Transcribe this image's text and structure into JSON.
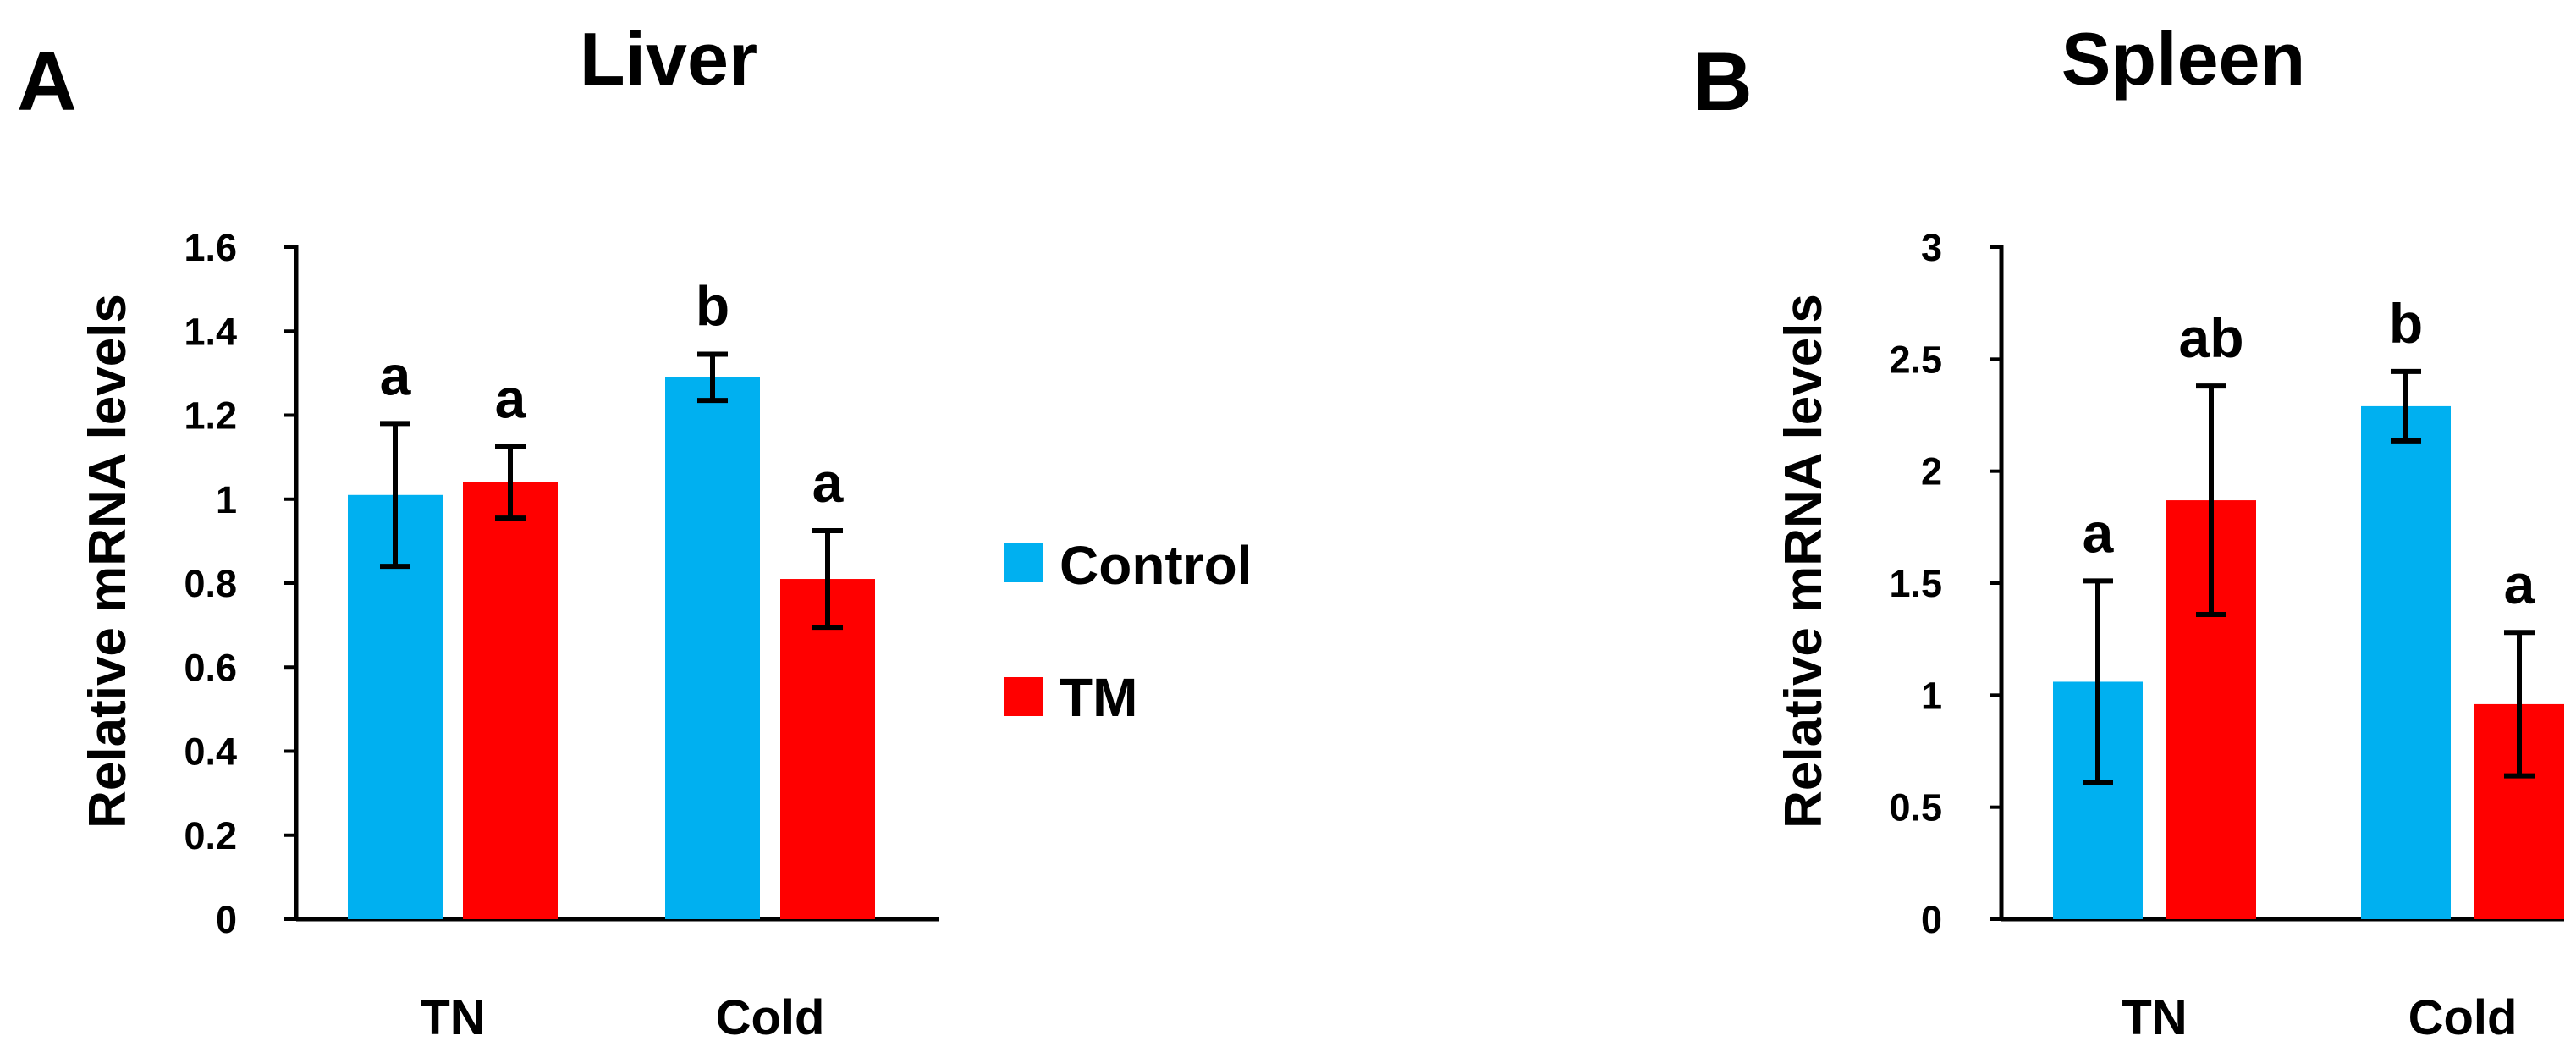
{
  "chart_data": [
    {
      "panel": "A",
      "type": "bar",
      "title": "Liver",
      "xlabel": "",
      "ylabel": "Relative mRNA levels",
      "ylim": [
        0,
        1.6
      ],
      "yticks": [
        0,
        0.2,
        0.4,
        0.6,
        0.8,
        1,
        1.2,
        1.4,
        1.6
      ],
      "ytick_labels": [
        "0",
        "0.2",
        "0.4",
        "0.6",
        "0.8",
        "1",
        "1.2",
        "1.4",
        "1.6"
      ],
      "categories": [
        "TN",
        "Cold"
      ],
      "series": [
        {
          "name": "Control",
          "color": "#00B0F0",
          "values": [
            1.01,
            1.29
          ],
          "errors": [
            0.17,
            0.055
          ],
          "labels": [
            "a",
            "b"
          ]
        },
        {
          "name": "TM",
          "color": "#FF0000",
          "values": [
            1.04,
            0.81
          ],
          "errors": [
            0.085,
            0.115
          ],
          "labels": [
            "a",
            "a"
          ]
        }
      ]
    },
    {
      "panel": "B",
      "type": "bar",
      "title": "Spleen",
      "xlabel": "",
      "ylabel": "Relative mRNA levels",
      "ylim": [
        0,
        3
      ],
      "yticks": [
        0,
        0.5,
        1,
        1.5,
        2,
        2.5,
        3
      ],
      "ytick_labels": [
        "0",
        "0.5",
        "1",
        "1.5",
        "2",
        "2.5",
        "3"
      ],
      "categories": [
        "TN",
        "Cold"
      ],
      "series": [
        {
          "name": "Control",
          "color": "#00B0F0",
          "values": [
            1.06,
            2.29
          ],
          "errors": [
            0.45,
            0.155
          ],
          "labels": [
            "a",
            "b"
          ]
        },
        {
          "name": "TM",
          "color": "#FF0000",
          "values": [
            1.87,
            0.96
          ],
          "errors": [
            0.51,
            0.32
          ],
          "labels": [
            "ab",
            "a"
          ]
        }
      ]
    }
  ],
  "legend": {
    "placement": "center-right of panel A",
    "items": [
      {
        "label": "Control",
        "color": "#00B0F0"
      },
      {
        "label": "TM",
        "color": "#FF0000"
      }
    ]
  }
}
